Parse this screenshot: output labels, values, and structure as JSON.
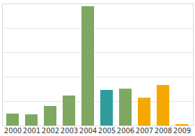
{
  "chart_data": {
    "type": "bar",
    "categories": [
      "2000",
      "2001",
      "2002",
      "2003",
      "2004",
      "2005",
      "2006",
      "2007",
      "2008",
      "2009"
    ],
    "values": [
      0.49,
      0.46,
      0.8,
      1.23,
      4.89,
      1.46,
      1.51,
      1.14,
      1.66,
      0.06
    ],
    "colors": [
      "#7ea862",
      "#7ea862",
      "#7ea862",
      "#7ea862",
      "#7ea862",
      "#2e9c9c",
      "#7ea862",
      "#f5a800",
      "#f5a800",
      "#f5a800"
    ],
    "ylim": [
      0,
      5
    ],
    "yticks": [
      0,
      1,
      2,
      3,
      4,
      5
    ],
    "grid": true,
    "tick_labels": "x"
  }
}
